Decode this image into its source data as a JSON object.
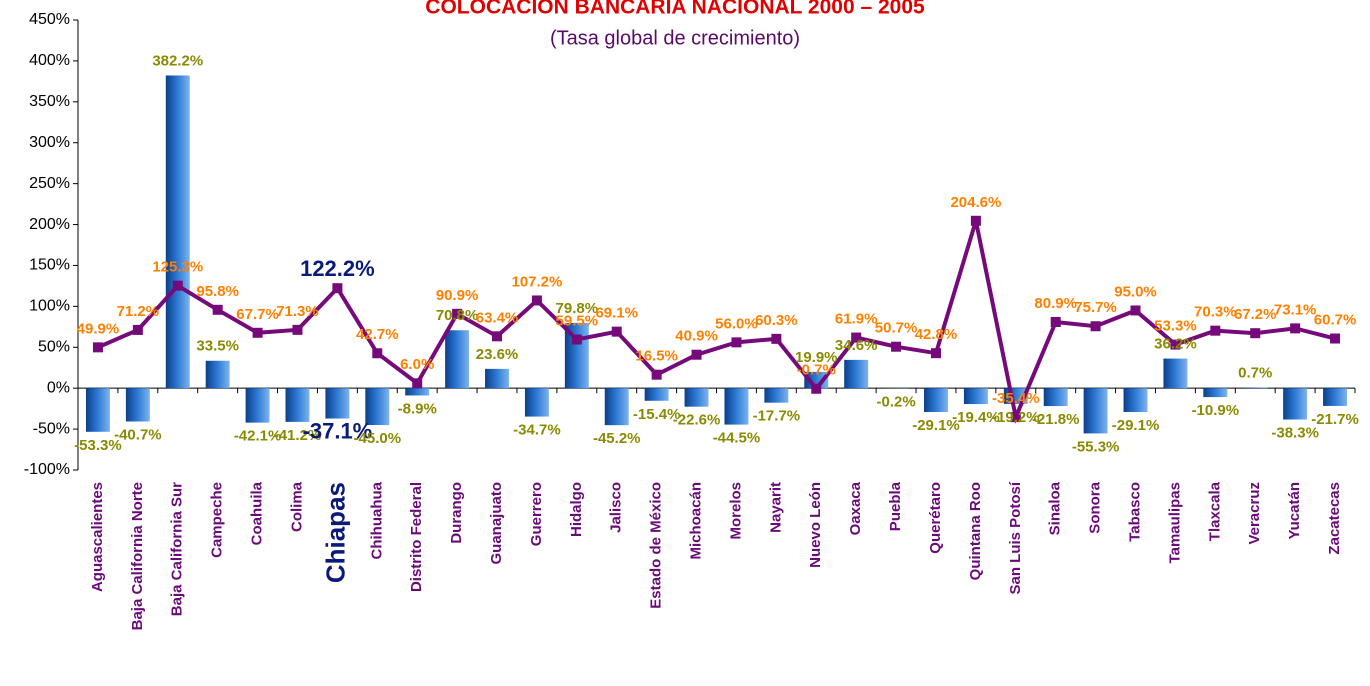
{
  "chart_data": {
    "type": "combo",
    "title": "COLOCACIÓN BANCARIA NACIONAL 2000 – 2005",
    "subtitle": "(Tasa global de crecimiento)",
    "categories": [
      "Aguascalientes",
      "Baja California Norte",
      "Baja California Sur",
      "Campeche",
      "Coahuila",
      "Colima",
      "Chiapas",
      "Chihuahua",
      "Distrito Federal",
      "Durango",
      "Guanajuato",
      "Guerrero",
      "Hidalgo",
      "Jalisco",
      "Estado de México",
      "Michoacán",
      "Morelos",
      "Nayarit",
      "Nuevo León",
      "Oaxaca",
      "Puebla",
      "Querétaro",
      "Quintana Roo",
      "San Luis Potosí",
      "Sinaloa",
      "Sonora",
      "Tabasco",
      "Tamaulipas",
      "Tlaxcala",
      "Veracruz",
      "Yucatán",
      "Zacatecas"
    ],
    "highlight_category": "Chiapas",
    "series": [
      {
        "type": "bar",
        "color": "#2f7bd6",
        "label_color": "#8a8a00",
        "values": [
          -53.3,
          -40.7,
          382.2,
          33.5,
          -42.1,
          -41.2,
          -37.1,
          -45.0,
          -8.9,
          70.8,
          23.6,
          -34.7,
          79.8,
          -45.2,
          -15.4,
          -22.6,
          -44.5,
          -17.7,
          19.9,
          34.6,
          -0.2,
          -29.1,
          -19.4,
          -19.2,
          -21.8,
          -55.3,
          -29.1,
          36.2,
          -10.9,
          0.7,
          -38.3,
          -21.7
        ],
        "value_labels": [
          "-53.3%",
          "-40.7%",
          "382.2%",
          "33.5%",
          "-42.1%",
          "-41.2%",
          "-37.1%",
          "-45.0%",
          "-8.9%",
          "70.8%",
          "23.6%",
          "-34.7%",
          "79.8%",
          "-45.2%",
          "-15.4%",
          "-22.6%",
          "-44.5%",
          "-17.7%",
          "19.9%",
          "34.6%",
          "-0.2%",
          "-29.1%",
          "-19.4%",
          "-19.2%",
          "-21.8%",
          "-55.3%",
          "-29.1%",
          "36.2%",
          "-10.9%",
          "0.7%",
          "-38.3%",
          "-21.7%"
        ]
      },
      {
        "type": "line",
        "color": "#770a7a",
        "label_color": "#ff8000",
        "values": [
          49.9,
          71.2,
          125.3,
          95.8,
          67.7,
          71.3,
          122.2,
          42.7,
          6.0,
          90.9,
          63.4,
          107.2,
          59.5,
          69.1,
          16.5,
          40.9,
          56.0,
          60.3,
          -0.7,
          61.9,
          50.7,
          42.8,
          204.6,
          -35.4,
          80.9,
          75.7,
          95.0,
          53.3,
          70.3,
          67.2,
          73.1,
          60.7
        ],
        "value_labels": [
          "49.9%",
          "71.2%",
          "125.3%",
          "95.8%",
          "67.7%",
          "71.3%",
          "122.2%",
          "42.7%",
          "6.0%",
          "90.9%",
          "63.4%",
          "107.2%",
          "59.5%",
          "69.1%",
          "16.5%",
          "40.9%",
          "56.0%",
          "60.3%",
          "-0.7%",
          "61.9%",
          "50.7%",
          "42.8%",
          "204.6%",
          "-35.4%",
          "80.9%",
          "75.7%",
          "95.0%",
          "53.3%",
          "70.3%",
          "67.2%",
          "73.1%",
          "60.7%"
        ]
      }
    ],
    "ylim": [
      -100,
      450
    ],
    "yticks": [
      {
        "value": -100,
        "label": "-100%"
      },
      {
        "value": -50,
        "label": "-50%"
      },
      {
        "value": 0,
        "label": "0%"
      },
      {
        "value": 50,
        "label": "50%"
      },
      {
        "value": 100,
        "label": "100%"
      },
      {
        "value": 150,
        "label": "150%"
      },
      {
        "value": 200,
        "label": "200%"
      },
      {
        "value": 250,
        "label": "250%"
      },
      {
        "value": 300,
        "label": "300%"
      },
      {
        "value": 350,
        "label": "350%"
      },
      {
        "value": 400,
        "label": "400%"
      },
      {
        "value": 450,
        "label": "450%"
      }
    ],
    "grid": false
  }
}
